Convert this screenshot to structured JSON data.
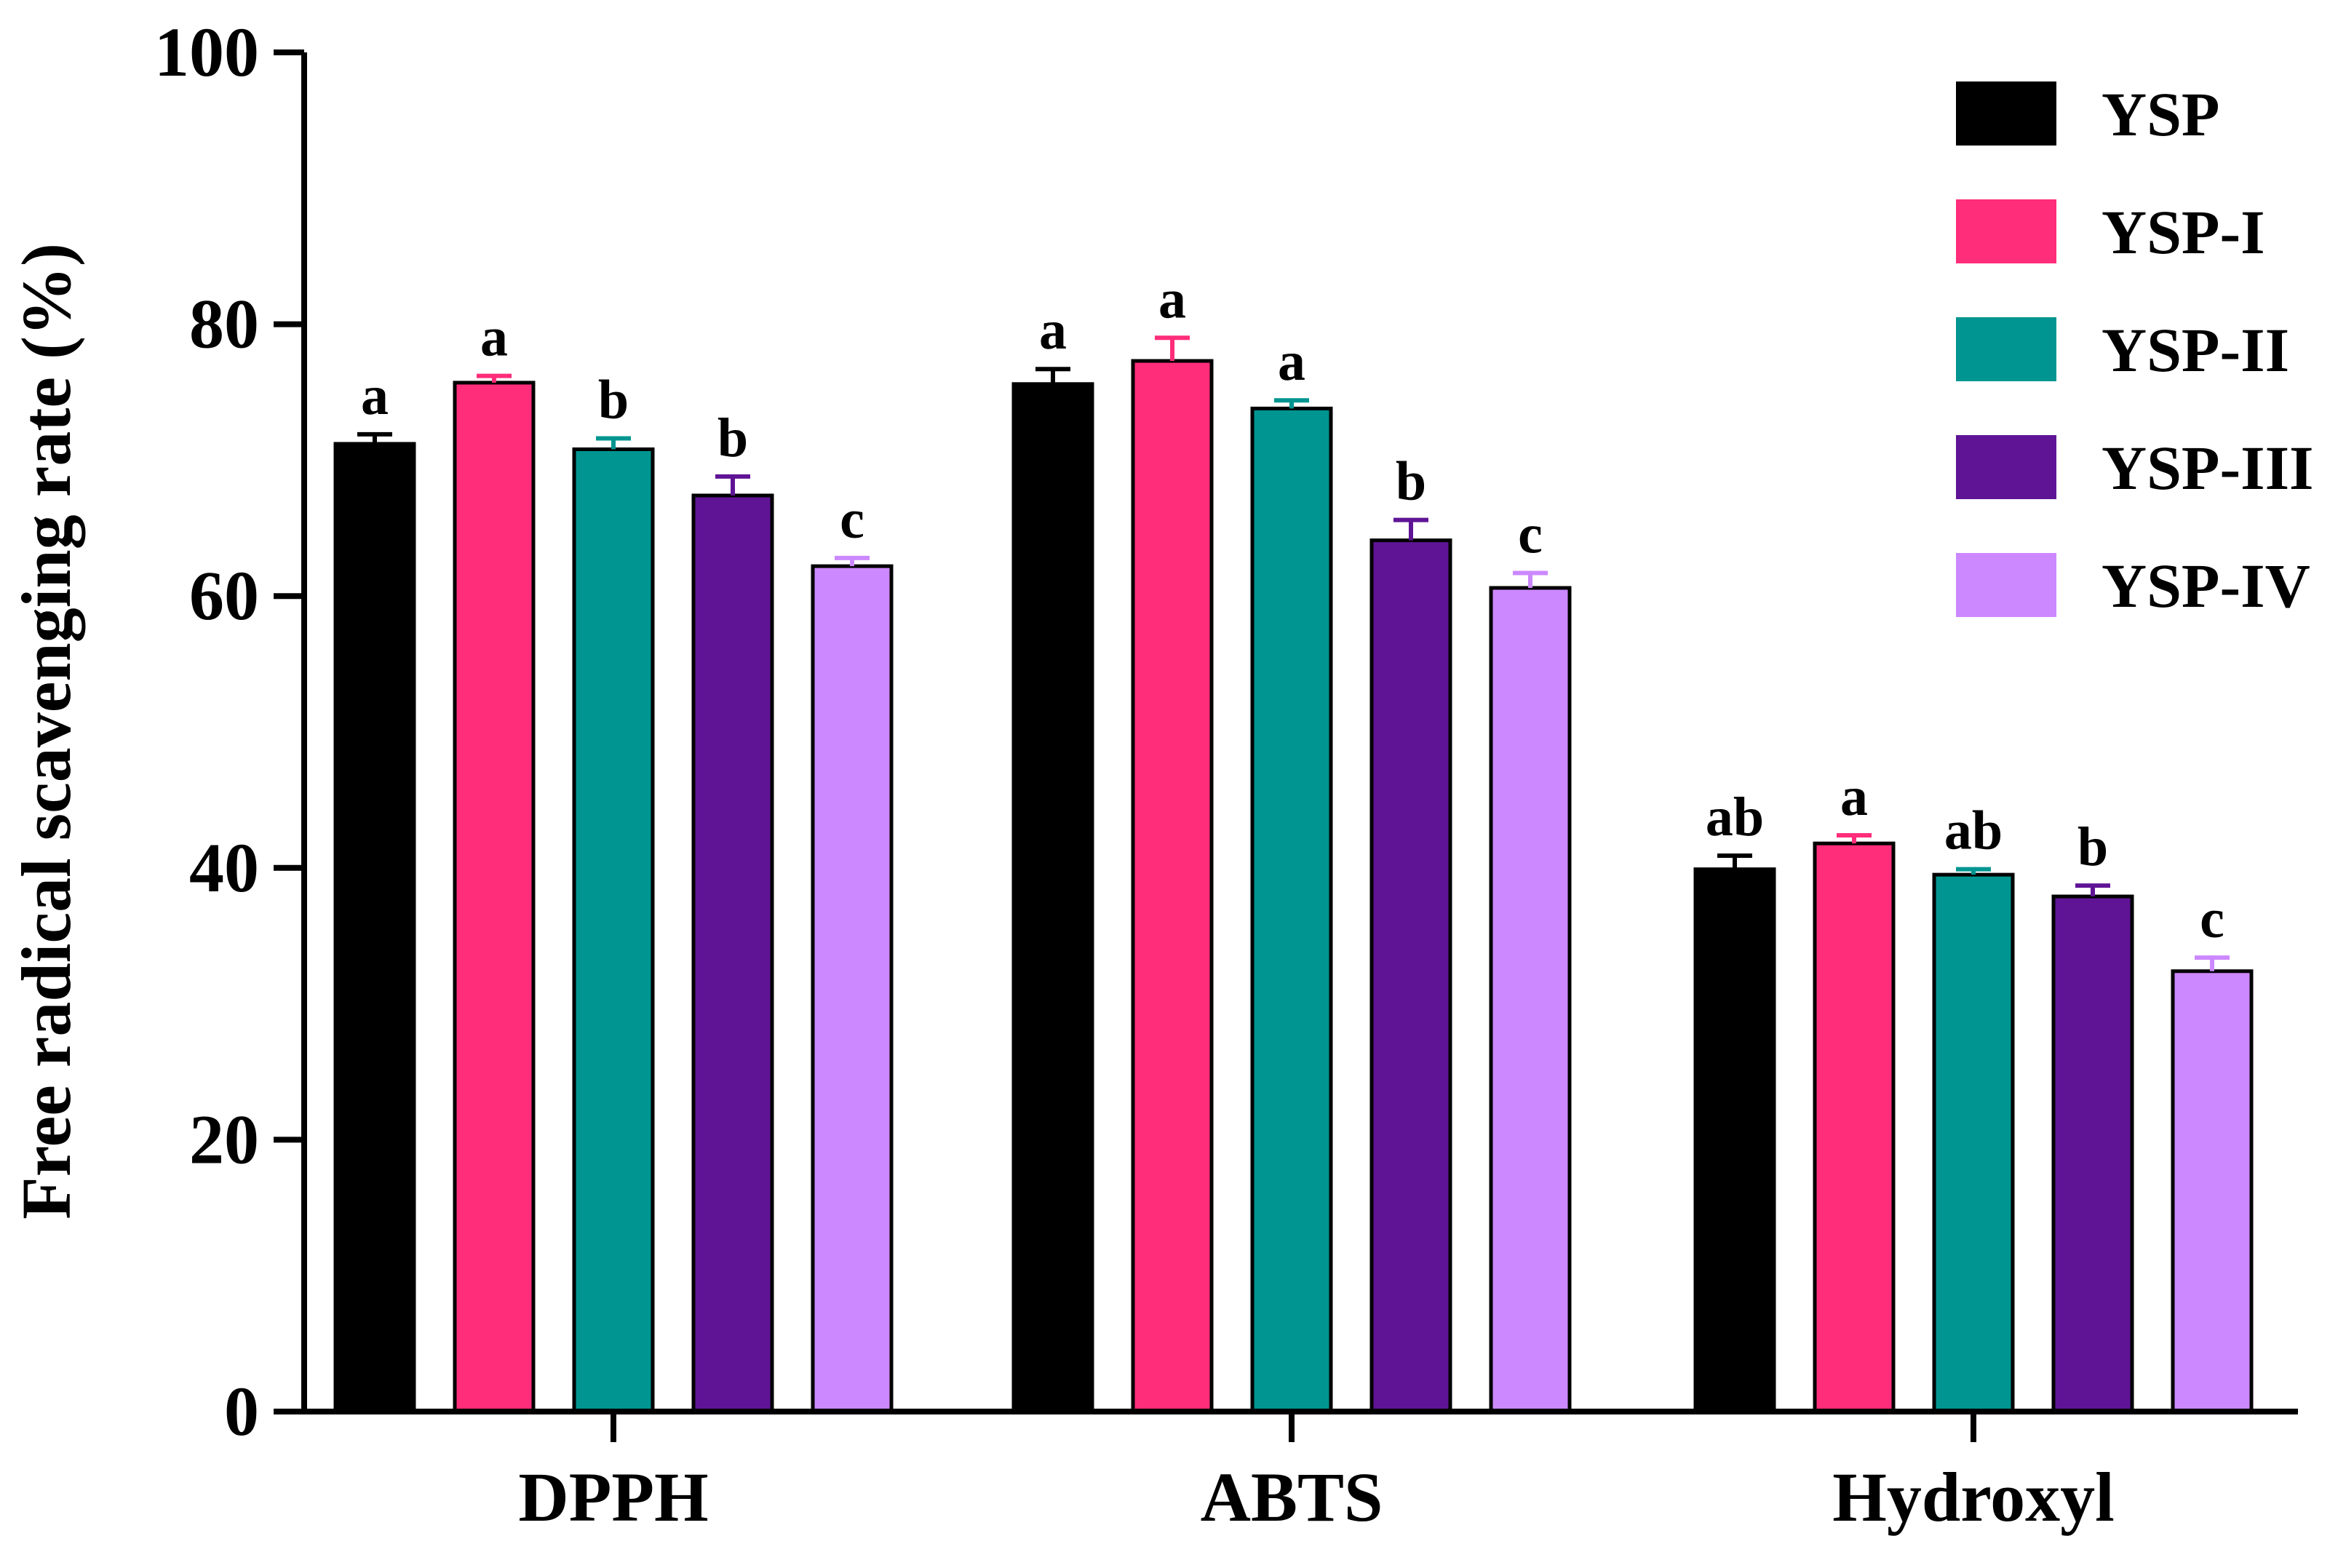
{
  "chart_data": {
    "type": "bar",
    "title": "",
    "xlabel": "",
    "ylabel": "Free radical scavenging rate (%)",
    "ylim": [
      0,
      100
    ],
    "yticks": [
      0,
      20,
      40,
      60,
      80,
      100
    ],
    "grid": false,
    "legend_position": "top-right",
    "categories": [
      "DPPH",
      "ABTS",
      "Hydroxyl"
    ],
    "series": [
      {
        "name": "YSP",
        "color": "#000000",
        "values": [
          71.2,
          75.6,
          39.9
        ],
        "errors": [
          0.7,
          1.1,
          1.0
        ],
        "letters": [
          "a",
          "a",
          "ab"
        ]
      },
      {
        "name": "YSP-I",
        "color": "#ff2d7a",
        "values": [
          75.7,
          77.3,
          41.8
        ],
        "errors": [
          0.5,
          1.7,
          0.6
        ],
        "letters": [
          "a",
          "a",
          "a"
        ]
      },
      {
        "name": "YSP-II",
        "color": "#009590",
        "values": [
          70.8,
          73.8,
          39.5
        ],
        "errors": [
          0.8,
          0.6,
          0.4
        ],
        "letters": [
          "b",
          "a",
          "ab"
        ]
      },
      {
        "name": "YSP-III",
        "color": "#5f1495",
        "values": [
          67.4,
          64.1,
          37.9
        ],
        "errors": [
          1.4,
          1.5,
          0.8
        ],
        "letters": [
          "b",
          "b",
          "b"
        ]
      },
      {
        "name": "YSP-IV",
        "color": "#cc88ff",
        "values": [
          62.2,
          60.6,
          32.4
        ],
        "errors": [
          0.6,
          1.1,
          1.0
        ],
        "letters": [
          "c",
          "c",
          "c"
        ]
      }
    ]
  }
}
